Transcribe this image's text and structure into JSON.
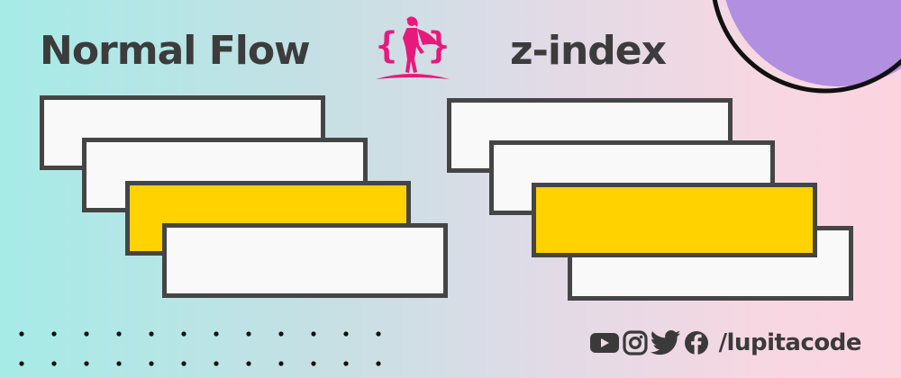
{
  "titles": {
    "left": "Normal Flow",
    "right": "z-index"
  },
  "colors": {
    "box_fill": "#f9f9f9",
    "box_highlight": "#ffd200",
    "box_border": "#454545",
    "text": "#3c3c3c",
    "logo_accent": "#e8197d",
    "circle_fill": "#b28fe0"
  },
  "diagrams": [
    {
      "name": "normal-flow",
      "boxes": [
        "white",
        "white",
        "yellow",
        "white"
      ],
      "front_box": 4
    },
    {
      "name": "z-index",
      "boxes": [
        "white",
        "white",
        "yellow",
        "white"
      ],
      "front_box": 3
    }
  ],
  "footer": {
    "icons": [
      "youtube-icon",
      "instagram-icon",
      "twitter-icon",
      "facebook-icon"
    ],
    "handle": "/lupitacode"
  }
}
